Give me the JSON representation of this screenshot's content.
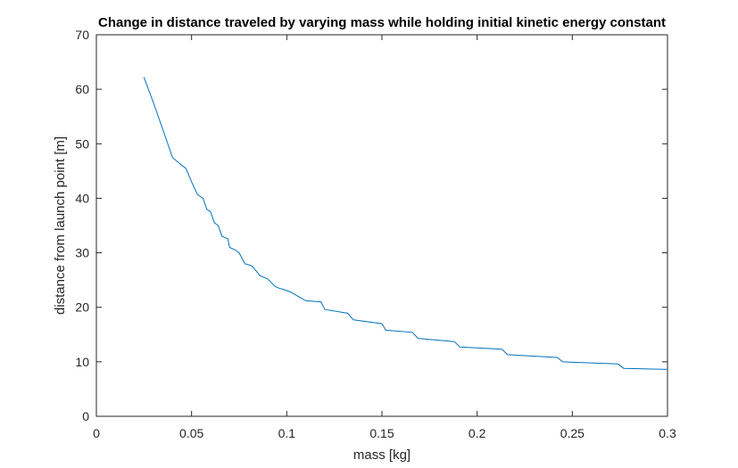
{
  "chart_data": {
    "type": "line",
    "title": "Change in distance traveled by varying mass while holding initial kinetic energy constant",
    "xlabel": "mass [kg]",
    "ylabel": "distance from launch point [m]",
    "xlim": [
      0,
      0.3
    ],
    "ylim": [
      0,
      70
    ],
    "x_ticks": [
      0,
      0.05,
      0.1,
      0.15,
      0.2,
      0.25,
      0.3
    ],
    "x_tick_labels": [
      "0",
      "0.05",
      "0.1",
      "0.15",
      "0.2",
      "0.25",
      "0.3"
    ],
    "y_ticks": [
      0,
      10,
      20,
      30,
      40,
      50,
      60,
      70
    ],
    "y_tick_labels": [
      "0",
      "10",
      "20",
      "30",
      "40",
      "50",
      "60",
      "70"
    ],
    "grid": false,
    "series": [
      {
        "color": "#0072bd",
        "x": [
          0.025,
          0.03,
          0.035,
          0.04,
          0.045,
          0.047,
          0.05,
          0.053,
          0.056,
          0.058,
          0.06,
          0.062,
          0.064,
          0.066,
          0.069,
          0.07,
          0.073,
          0.075,
          0.078,
          0.08,
          0.082,
          0.086,
          0.088,
          0.09,
          0.094,
          0.096,
          0.098,
          0.102,
          0.108,
          0.11,
          0.118,
          0.12,
          0.132,
          0.135,
          0.15,
          0.152,
          0.166,
          0.169,
          0.188,
          0.191,
          0.213,
          0.216,
          0.242,
          0.245,
          0.274,
          0.277,
          0.3
        ],
        "y": [
          62.2,
          57.5,
          52.5,
          47.5,
          46.0,
          45.5,
          43.0,
          40.7,
          40.0,
          38.0,
          37.5,
          35.5,
          35.0,
          33.0,
          32.6,
          31.0,
          30.5,
          30.0,
          28.0,
          27.8,
          27.5,
          25.8,
          25.5,
          25.2,
          23.8,
          23.5,
          23.3,
          22.8,
          21.6,
          21.2,
          21.0,
          19.6,
          18.9,
          17.7,
          17.0,
          15.8,
          15.4,
          14.3,
          13.7,
          12.7,
          12.3,
          11.3,
          10.8,
          10.0,
          9.6,
          8.8,
          8.6
        ]
      }
    ]
  }
}
